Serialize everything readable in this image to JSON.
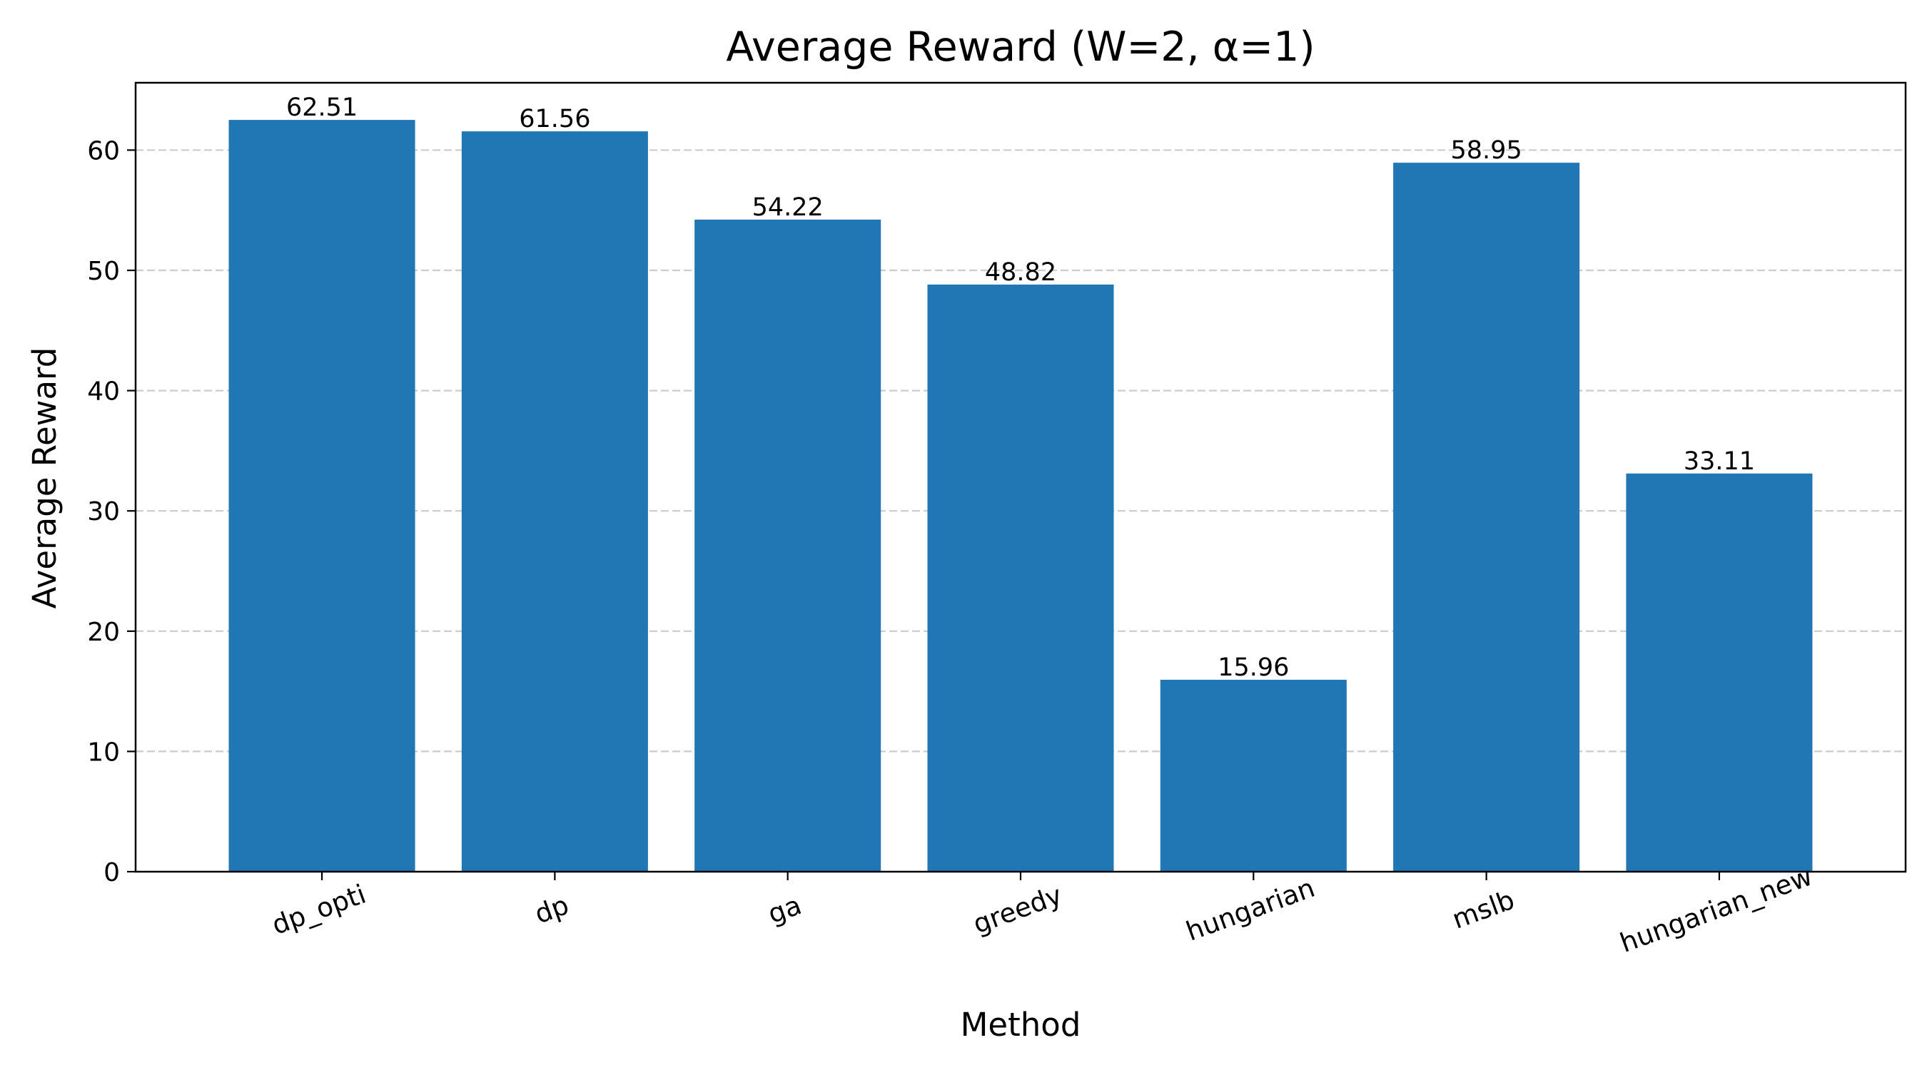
{
  "chart_data": {
    "type": "bar",
    "title": "Average Reward (W=2, α=1)",
    "xlabel": "Method",
    "ylabel": "Average Reward",
    "categories": [
      "dp_opti",
      "dp",
      "ga",
      "greedy",
      "hungarian",
      "mslb",
      "hungarian_new"
    ],
    "values": [
      62.51,
      61.56,
      54.22,
      48.82,
      15.96,
      58.95,
      33.11
    ],
    "value_labels": [
      "62.51",
      "61.56",
      "54.22",
      "48.82",
      "15.96",
      "58.95",
      "33.11"
    ],
    "ylim": [
      0,
      65.6
    ],
    "yticks": [
      0,
      10,
      20,
      30,
      40,
      50,
      60
    ],
    "ytick_labels": [
      "0",
      "10",
      "20",
      "30",
      "40",
      "50",
      "60"
    ],
    "xtick_rotation_deg": 20,
    "grid": "y-axis, dashed",
    "legend": "none",
    "bar_color": "#2077b4",
    "grid_color": "#cccccc"
  }
}
